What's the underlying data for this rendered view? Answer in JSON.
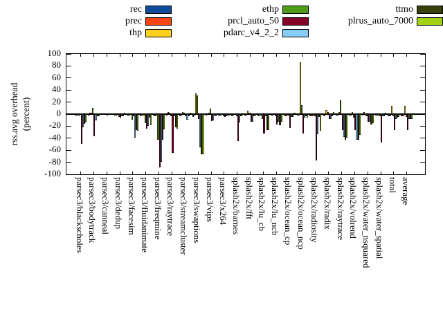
{
  "chart_data": {
    "type": "bar",
    "title": "",
    "ylabel_lines": [
      "rss.avg overhead",
      "(percent)"
    ],
    "ylim": [
      -100,
      100
    ],
    "ytick_step": 20,
    "yticks": [
      100,
      80,
      60,
      40,
      20,
      0,
      -20,
      -40,
      -60,
      -80,
      -100
    ],
    "grid": false,
    "legend_position": "top",
    "frame_color": "#000000",
    "background": "#ffffff",
    "categories": [
      "parsec3/blackscholes",
      "parsec3/bodytrack",
      "parsec3/canneal",
      "parsec3/dedup",
      "parsec3/facesim",
      "parsec3/fluidanimate",
      "parsec3/freqmine",
      "parsec3/raytrace",
      "parsec3/streamcluster",
      "parsec3/swaptions",
      "parsec3/vips",
      "parsec3/x264",
      "splash2x/barnes",
      "splash2x/fft",
      "splash2x/lu_cb",
      "splash2x/lu_ncb",
      "splash2x/ocean_cp",
      "splash2x/ocean_ncp",
      "splash2x/radiosity",
      "splash2x/radix",
      "splash2x/raytrace",
      "splash2x/volrend",
      "splash2x/water_nsquared",
      "splash2x/water_spatial",
      "total",
      "average"
    ],
    "series": [
      {
        "name": "rec",
        "color": "#0d4b9b",
        "values": [
          -2,
          -2,
          -1,
          -2,
          -2,
          -3,
          -2,
          -2,
          -3,
          -5,
          -2,
          -2,
          -3,
          -2,
          -3,
          -2,
          -2,
          -2,
          -3,
          -2,
          -2,
          -2,
          -2,
          -2,
          -3,
          -3
        ]
      },
      {
        "name": "prec",
        "color": "#fb4612",
        "values": [
          -2,
          2,
          -1,
          -2,
          -2,
          -2,
          -3,
          3,
          -2,
          -2,
          -1,
          -2,
          -2,
          -2,
          -2,
          -2,
          -3,
          -2,
          -3,
          -3,
          -2,
          -2,
          3,
          -2,
          -3,
          -3
        ]
      },
      {
        "name": "thp",
        "color": "#fcd01c",
        "values": [
          -2,
          2,
          0,
          1,
          1,
          -2,
          -2,
          2,
          3,
          35,
          2,
          -1,
          -1,
          6,
          -2,
          -1,
          -2,
          86,
          -2,
          7,
          3,
          4,
          -2,
          -2,
          14,
          14
        ]
      },
      {
        "name": "ethp",
        "color": "#4f9c19",
        "values": [
          -2,
          10,
          1,
          -5,
          -9,
          -15,
          -43,
          -3,
          2,
          31,
          9,
          -3,
          -3,
          2,
          -8,
          -4,
          -2,
          15,
          -3,
          3,
          23,
          -6,
          -4,
          -3,
          -4,
          -5
        ]
      },
      {
        "name": "prcl_auto_50",
        "color": "#850026",
        "values": [
          -49,
          -37,
          -2,
          -6,
          -3,
          -24,
          -89,
          -64,
          -4,
          -8,
          -11,
          -5,
          -45,
          -13,
          -32,
          -17,
          -23,
          -32,
          -77,
          -8,
          -26,
          -26,
          -13,
          -47,
          -26,
          -27
        ]
      },
      {
        "name": "pdarc_v4_2_2",
        "color": "#87ccf7",
        "values": [
          -22,
          -10,
          -1,
          -4,
          -39,
          -20,
          -79,
          -4,
          -9,
          -55,
          -10,
          -3,
          -14,
          -13,
          -4,
          -13,
          -5,
          -6,
          -33,
          -8,
          -38,
          -42,
          -13,
          -4,
          -8,
          -8
        ]
      },
      {
        "name": "ttmo",
        "color": "#36400a",
        "values": [
          -16,
          -3,
          -1,
          -3,
          -26,
          -6,
          -43,
          -22,
          -3,
          -67,
          -2,
          -2,
          -3,
          -3,
          -26,
          -18,
          -5,
          -3,
          -5,
          -4,
          -42,
          -43,
          -17,
          -4,
          -6,
          -8
        ]
      },
      {
        "name": "plrus_auto_7000",
        "color": "#a3d214",
        "values": [
          -14,
          -4,
          -1,
          2,
          -28,
          -18,
          -25,
          -24,
          2,
          -67,
          -3,
          -2,
          -2,
          -2,
          -26,
          -13,
          2,
          -6,
          -28,
          3,
          -39,
          -35,
          -15,
          2,
          -5,
          -8
        ]
      }
    ],
    "legend_columns": [
      [
        "rec",
        "prec",
        "thp"
      ],
      [
        "ethp",
        "prcl_auto_50",
        "pdarc_v4_2_2"
      ],
      [
        "ttmo",
        "plrus_auto_7000"
      ]
    ]
  }
}
